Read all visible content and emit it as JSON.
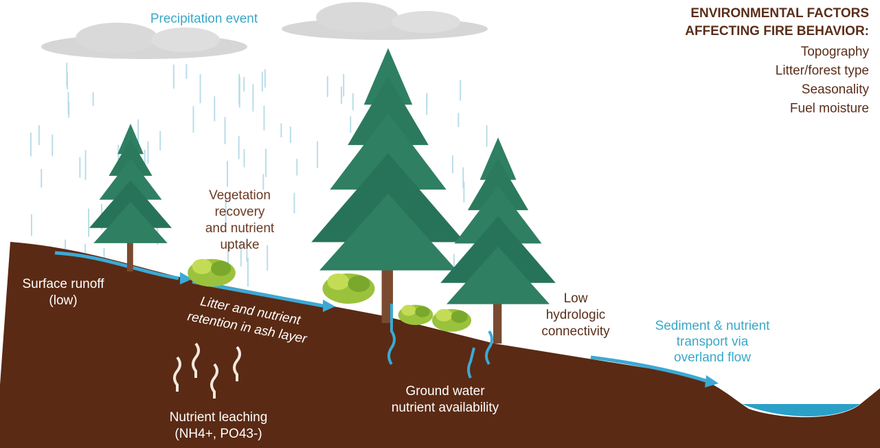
{
  "precipitation": "Precipitation event",
  "factors": {
    "title": [
      "ENVIRONMENTAL FACTORS",
      "AFFECTING FIRE BEHAVIOR:"
    ],
    "items": [
      "Topography",
      "Litter/forest type",
      "Seasonality",
      "Fuel moisture"
    ]
  },
  "labels": {
    "vegetation": [
      "Vegetation",
      "recovery",
      "and nutrient",
      "uptake"
    ],
    "runoff": [
      "Surface runoff",
      "(low)"
    ],
    "litter": [
      "Litter and nutrient",
      "retention in ash layer"
    ],
    "leaching": [
      "Nutrient leaching",
      "(NH4+, PO43-)"
    ],
    "groundwater": [
      "Ground water",
      "nutrient availability"
    ],
    "connectivity": [
      "Low",
      "hydrologic",
      "connectivity"
    ],
    "sediment": [
      "Sediment & nutrient",
      "transport via",
      "overland flow"
    ]
  }
}
